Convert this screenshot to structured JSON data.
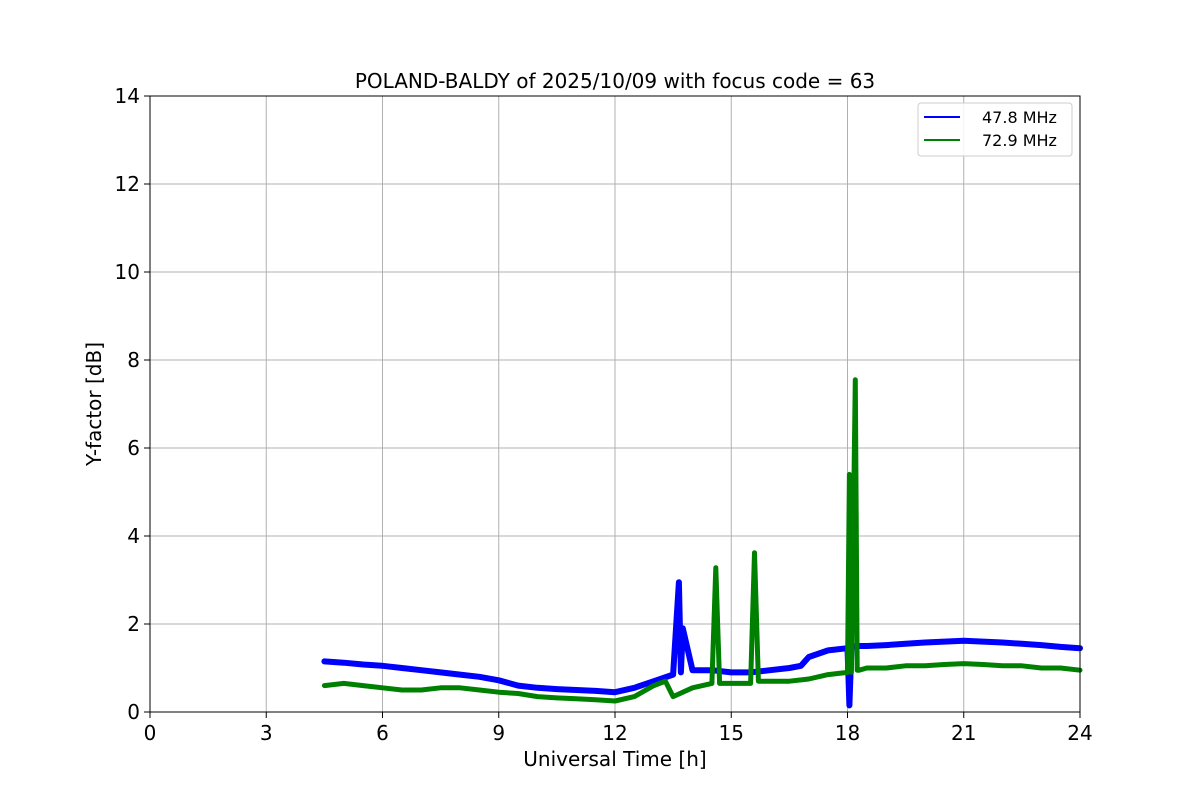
{
  "chart_data": {
    "type": "line",
    "title": "POLAND-BALDY of 2025/10/09 with focus code = 63",
    "xlabel": "Universal Time [h]",
    "ylabel": "Y-factor [dB]",
    "xlim": [
      0,
      24
    ],
    "ylim": [
      0,
      14
    ],
    "xticks": [
      0,
      3,
      6,
      9,
      12,
      15,
      18,
      21,
      24
    ],
    "yticks": [
      0,
      2,
      4,
      6,
      8,
      10,
      12,
      14
    ],
    "grid": true,
    "legend_position": "top-right",
    "series": [
      {
        "name": "47.8 MHz",
        "color": "#0000ff",
        "x": [
          4.5,
          5.0,
          5.5,
          6.0,
          6.5,
          7.0,
          7.5,
          8.0,
          8.5,
          9.0,
          9.5,
          10.0,
          10.5,
          11.0,
          11.5,
          12.0,
          12.5,
          13.0,
          13.5,
          13.65,
          13.7,
          13.75,
          14.0,
          14.5,
          15.0,
          15.5,
          16.0,
          16.5,
          16.8,
          17.0,
          17.5,
          18.0,
          18.05,
          18.1,
          18.2,
          18.5,
          19.0,
          19.5,
          20.0,
          20.5,
          21.0,
          21.5,
          22.0,
          22.5,
          23.0,
          23.5,
          24.0
        ],
        "y": [
          1.15,
          1.12,
          1.08,
          1.05,
          1.0,
          0.95,
          0.9,
          0.85,
          0.8,
          0.72,
          0.6,
          0.55,
          0.52,
          0.5,
          0.48,
          0.45,
          0.55,
          0.7,
          0.85,
          2.95,
          0.9,
          1.9,
          0.95,
          0.95,
          0.9,
          0.9,
          0.95,
          1.0,
          1.05,
          1.25,
          1.4,
          1.45,
          0.15,
          1.45,
          1.5,
          1.5,
          1.52,
          1.55,
          1.58,
          1.6,
          1.62,
          1.6,
          1.58,
          1.55,
          1.52,
          1.48,
          1.45
        ]
      },
      {
        "name": "72.9 MHz",
        "color": "#008000",
        "x": [
          4.5,
          5.0,
          5.5,
          6.0,
          6.5,
          7.0,
          7.5,
          8.0,
          8.5,
          9.0,
          9.5,
          10.0,
          10.5,
          11.0,
          11.5,
          12.0,
          12.5,
          13.0,
          13.3,
          13.5,
          14.0,
          14.5,
          14.6,
          14.7,
          15.0,
          15.5,
          15.6,
          15.7,
          16.0,
          16.5,
          17.0,
          17.5,
          18.0,
          18.05,
          18.1,
          18.15,
          18.2,
          18.25,
          18.3,
          18.5,
          19.0,
          19.5,
          20.0,
          20.5,
          21.0,
          21.5,
          22.0,
          22.5,
          23.0,
          23.5,
          24.0
        ],
        "y": [
          0.6,
          0.65,
          0.6,
          0.55,
          0.5,
          0.5,
          0.55,
          0.55,
          0.5,
          0.45,
          0.42,
          0.35,
          0.32,
          0.3,
          0.28,
          0.25,
          0.35,
          0.6,
          0.7,
          0.35,
          0.55,
          0.65,
          3.28,
          0.65,
          0.65,
          0.65,
          3.62,
          0.7,
          0.7,
          0.7,
          0.75,
          0.85,
          0.9,
          5.4,
          0.9,
          4.1,
          7.55,
          0.95,
          0.95,
          1.0,
          1.0,
          1.05,
          1.05,
          1.08,
          1.1,
          1.08,
          1.05,
          1.05,
          1.0,
          1.0,
          0.95
        ]
      }
    ]
  }
}
